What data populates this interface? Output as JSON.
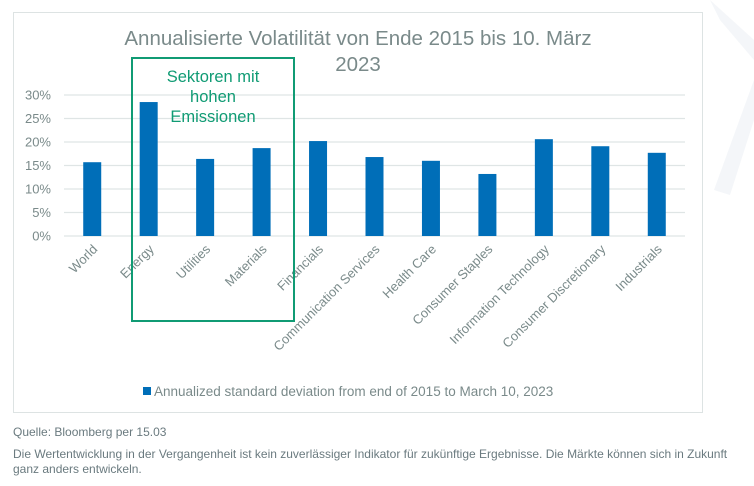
{
  "chart_data": {
    "type": "bar",
    "title": "Annualisierte Volatilität von Ende 2015 bis 10. März 2023",
    "title_lines": [
      "Annualisierte Volatilität von Ende 2015 bis 10. März",
      "2023"
    ],
    "categories": [
      "World",
      "Energy",
      "Utilities",
      "Materials",
      "Financials",
      "Communication Services",
      "Health Care",
      "Consumer Staples",
      "Information Technology",
      "Consumer Discretionary",
      "Industrials"
    ],
    "series": [
      {
        "name": "Annualized standard deviation from end of 2015 to March 10, 2023",
        "color": "#006eb8",
        "values": [
          15.7,
          28.5,
          16.4,
          18.7,
          20.2,
          16.8,
          16.0,
          13.2,
          20.6,
          19.1,
          17.7
        ]
      }
    ],
    "xlabel": "",
    "ylabel": "",
    "ylim": [
      0,
      30
    ],
    "yticks": [
      0,
      5,
      10,
      15,
      20,
      25,
      30
    ],
    "ytick_labels": [
      "0%",
      "5%",
      "10%",
      "15%",
      "20%",
      "25%",
      "30%"
    ],
    "grid": true,
    "legend_position": "bottom",
    "annotation": {
      "text_lines": [
        "Sektoren mit",
        "hohen",
        "Emissionen"
      ],
      "color": "#109b74",
      "highlighted_categories": [
        "Energy",
        "Utilities",
        "Materials"
      ]
    }
  },
  "footer": {
    "source": "Quelle: Bloomberg per 15.03",
    "disclaimer": "Die Wertentwicklung in der Vergangenheit ist kein zuverlässiger Indikator für zukünftige Ergebnisse. Die Märkte können sich in Zukunft ganz anders entwickeln."
  }
}
